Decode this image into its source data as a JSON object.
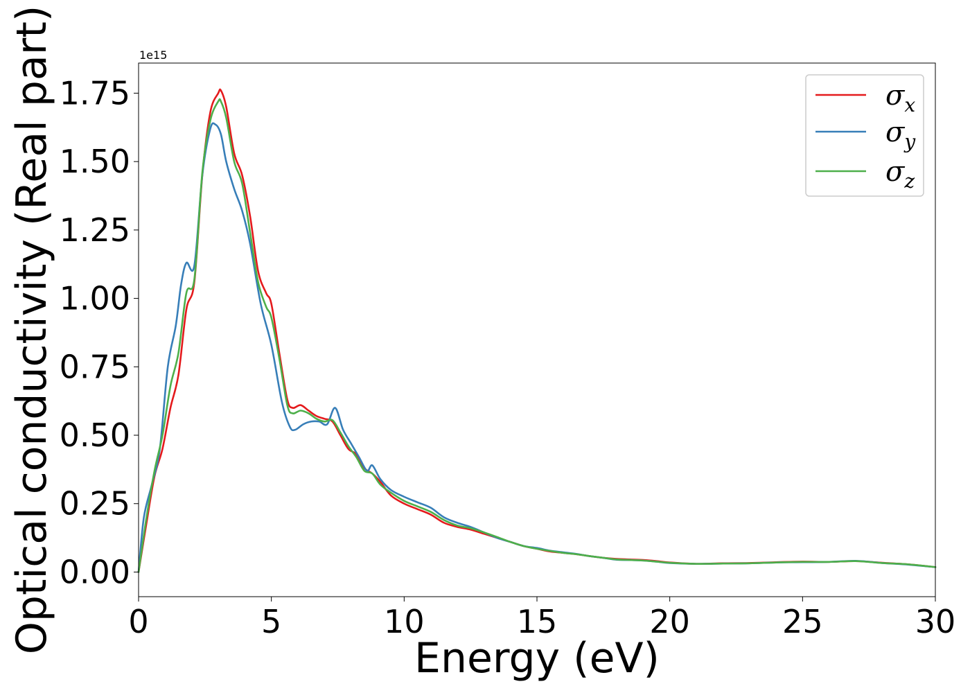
{
  "chart_data": {
    "type": "line",
    "xlabel": "Energy (eV)",
    "ylabel": "Optical conductivity (Real part)",
    "y_offset_text": "1e15",
    "xlim": [
      0,
      30
    ],
    "ylim": [
      -0.09,
      1.86
    ],
    "xticks": [
      0,
      5,
      10,
      15,
      20,
      25,
      30
    ],
    "xtick_labels": [
      "0",
      "5",
      "10",
      "15",
      "20",
      "25",
      "30"
    ],
    "yticks": [
      0.0,
      0.25,
      0.5,
      0.75,
      1.0,
      1.25,
      1.5,
      1.75
    ],
    "ytick_labels": [
      "0.00",
      "0.25",
      "0.50",
      "0.75",
      "1.00",
      "1.25",
      "1.50",
      "1.75"
    ],
    "grid": false,
    "legend_position": "top-right",
    "series": [
      {
        "name": "σx",
        "symbol": "σ",
        "subscript": "x",
        "color": "#e41a1c",
        "x": [
          0,
          0.3,
          0.6,
          0.9,
          1.2,
          1.5,
          1.8,
          2.1,
          2.4,
          2.7,
          3.0,
          3.1,
          3.3,
          3.6,
          3.9,
          4.2,
          4.5,
          4.8,
          5.0,
          5.3,
          5.6,
          5.8,
          6.1,
          6.4,
          6.7,
          7.0,
          7.3,
          7.6,
          7.9,
          8.2,
          8.5,
          8.8,
          9.1,
          9.5,
          10.0,
          10.5,
          11.0,
          11.5,
          12.0,
          12.5,
          13.0,
          13.5,
          14.0,
          14.5,
          15.0,
          15.5,
          16.0,
          16.5,
          17.0,
          17.5,
          18.0,
          18.5,
          19.0,
          19.5,
          20.0,
          21.0,
          22.0,
          23.0,
          24.0,
          25.0,
          26.0,
          27.0,
          28.0,
          29.0,
          30.0
        ],
        "y": [
          0.0,
          0.18,
          0.35,
          0.45,
          0.6,
          0.72,
          0.96,
          1.06,
          1.45,
          1.68,
          1.75,
          1.76,
          1.7,
          1.53,
          1.45,
          1.3,
          1.1,
          1.02,
          0.98,
          0.8,
          0.63,
          0.6,
          0.61,
          0.59,
          0.57,
          0.56,
          0.55,
          0.5,
          0.45,
          0.43,
          0.38,
          0.36,
          0.33,
          0.28,
          0.25,
          0.23,
          0.21,
          0.18,
          0.165,
          0.155,
          0.14,
          0.125,
          0.11,
          0.095,
          0.085,
          0.075,
          0.07,
          0.065,
          0.058,
          0.052,
          0.048,
          0.046,
          0.044,
          0.04,
          0.035,
          0.03,
          0.032,
          0.033,
          0.036,
          0.038,
          0.037,
          0.04,
          0.034,
          0.028,
          0.018
        ]
      },
      {
        "name": "σy",
        "symbol": "σ",
        "subscript": "y",
        "color": "#377eb8",
        "x": [
          0,
          0.2,
          0.5,
          0.8,
          1.1,
          1.4,
          1.6,
          1.8,
          2.1,
          2.4,
          2.7,
          2.9,
          3.1,
          3.3,
          3.6,
          3.9,
          4.2,
          4.6,
          5.0,
          5.4,
          5.7,
          5.9,
          6.2,
          6.5,
          6.8,
          7.1,
          7.4,
          7.7,
          8.0,
          8.3,
          8.6,
          8.8,
          9.1,
          9.5,
          10.0,
          10.5,
          11.0,
          11.5,
          12.0,
          12.5,
          13.0,
          13.5,
          14.0,
          14.5,
          15.0,
          15.5,
          16.0,
          16.5,
          17.0,
          17.5,
          18.0,
          18.5,
          19.0,
          19.5,
          20.0,
          21.0,
          22.0,
          23.0,
          24.0,
          25.0,
          26.0,
          27.0,
          28.0,
          29.0,
          30.0
        ],
        "y": [
          0.0,
          0.2,
          0.32,
          0.45,
          0.75,
          0.9,
          1.05,
          1.13,
          1.12,
          1.45,
          1.62,
          1.635,
          1.6,
          1.5,
          1.4,
          1.32,
          1.2,
          0.98,
          0.83,
          0.62,
          0.53,
          0.52,
          0.54,
          0.55,
          0.55,
          0.54,
          0.6,
          0.52,
          0.47,
          0.42,
          0.37,
          0.39,
          0.34,
          0.3,
          0.275,
          0.255,
          0.235,
          0.2,
          0.18,
          0.165,
          0.145,
          0.125,
          0.11,
          0.095,
          0.088,
          0.078,
          0.072,
          0.066,
          0.058,
          0.052,
          0.045,
          0.044,
          0.042,
          0.038,
          0.033,
          0.03,
          0.031,
          0.032,
          0.035,
          0.036,
          0.037,
          0.041,
          0.033,
          0.027,
          0.018
        ]
      },
      {
        "name": "σz",
        "symbol": "σ",
        "subscript": "z",
        "color": "#4daf4a",
        "x": [
          0,
          0.3,
          0.6,
          0.9,
          1.2,
          1.5,
          1.8,
          2.1,
          2.4,
          2.7,
          3.0,
          3.1,
          3.3,
          3.6,
          3.9,
          4.2,
          4.5,
          4.8,
          5.0,
          5.3,
          5.6,
          5.8,
          6.1,
          6.4,
          6.7,
          7.0,
          7.3,
          7.6,
          7.9,
          8.2,
          8.5,
          8.8,
          9.1,
          9.5,
          10.0,
          10.5,
          11.0,
          11.5,
          12.0,
          12.5,
          13.0,
          13.5,
          14.0,
          14.5,
          15.0,
          15.5,
          16.0,
          16.5,
          17.0,
          17.5,
          18.0,
          18.5,
          19.0,
          19.5,
          20.0,
          21.0,
          22.0,
          23.0,
          24.0,
          25.0,
          26.0,
          27.0,
          28.0,
          29.0,
          30.0
        ],
        "y": [
          0.0,
          0.2,
          0.37,
          0.5,
          0.68,
          0.8,
          1.02,
          1.07,
          1.46,
          1.65,
          1.72,
          1.72,
          1.66,
          1.5,
          1.42,
          1.24,
          1.06,
          0.97,
          0.93,
          0.78,
          0.61,
          0.58,
          0.59,
          0.58,
          0.56,
          0.55,
          0.555,
          0.51,
          0.46,
          0.42,
          0.37,
          0.36,
          0.32,
          0.29,
          0.26,
          0.24,
          0.22,
          0.19,
          0.17,
          0.16,
          0.145,
          0.128,
          0.11,
          0.095,
          0.085,
          0.077,
          0.07,
          0.065,
          0.058,
          0.052,
          0.046,
          0.044,
          0.042,
          0.038,
          0.034,
          0.03,
          0.031,
          0.032,
          0.035,
          0.037,
          0.037,
          0.04,
          0.033,
          0.028,
          0.018
        ]
      }
    ]
  }
}
